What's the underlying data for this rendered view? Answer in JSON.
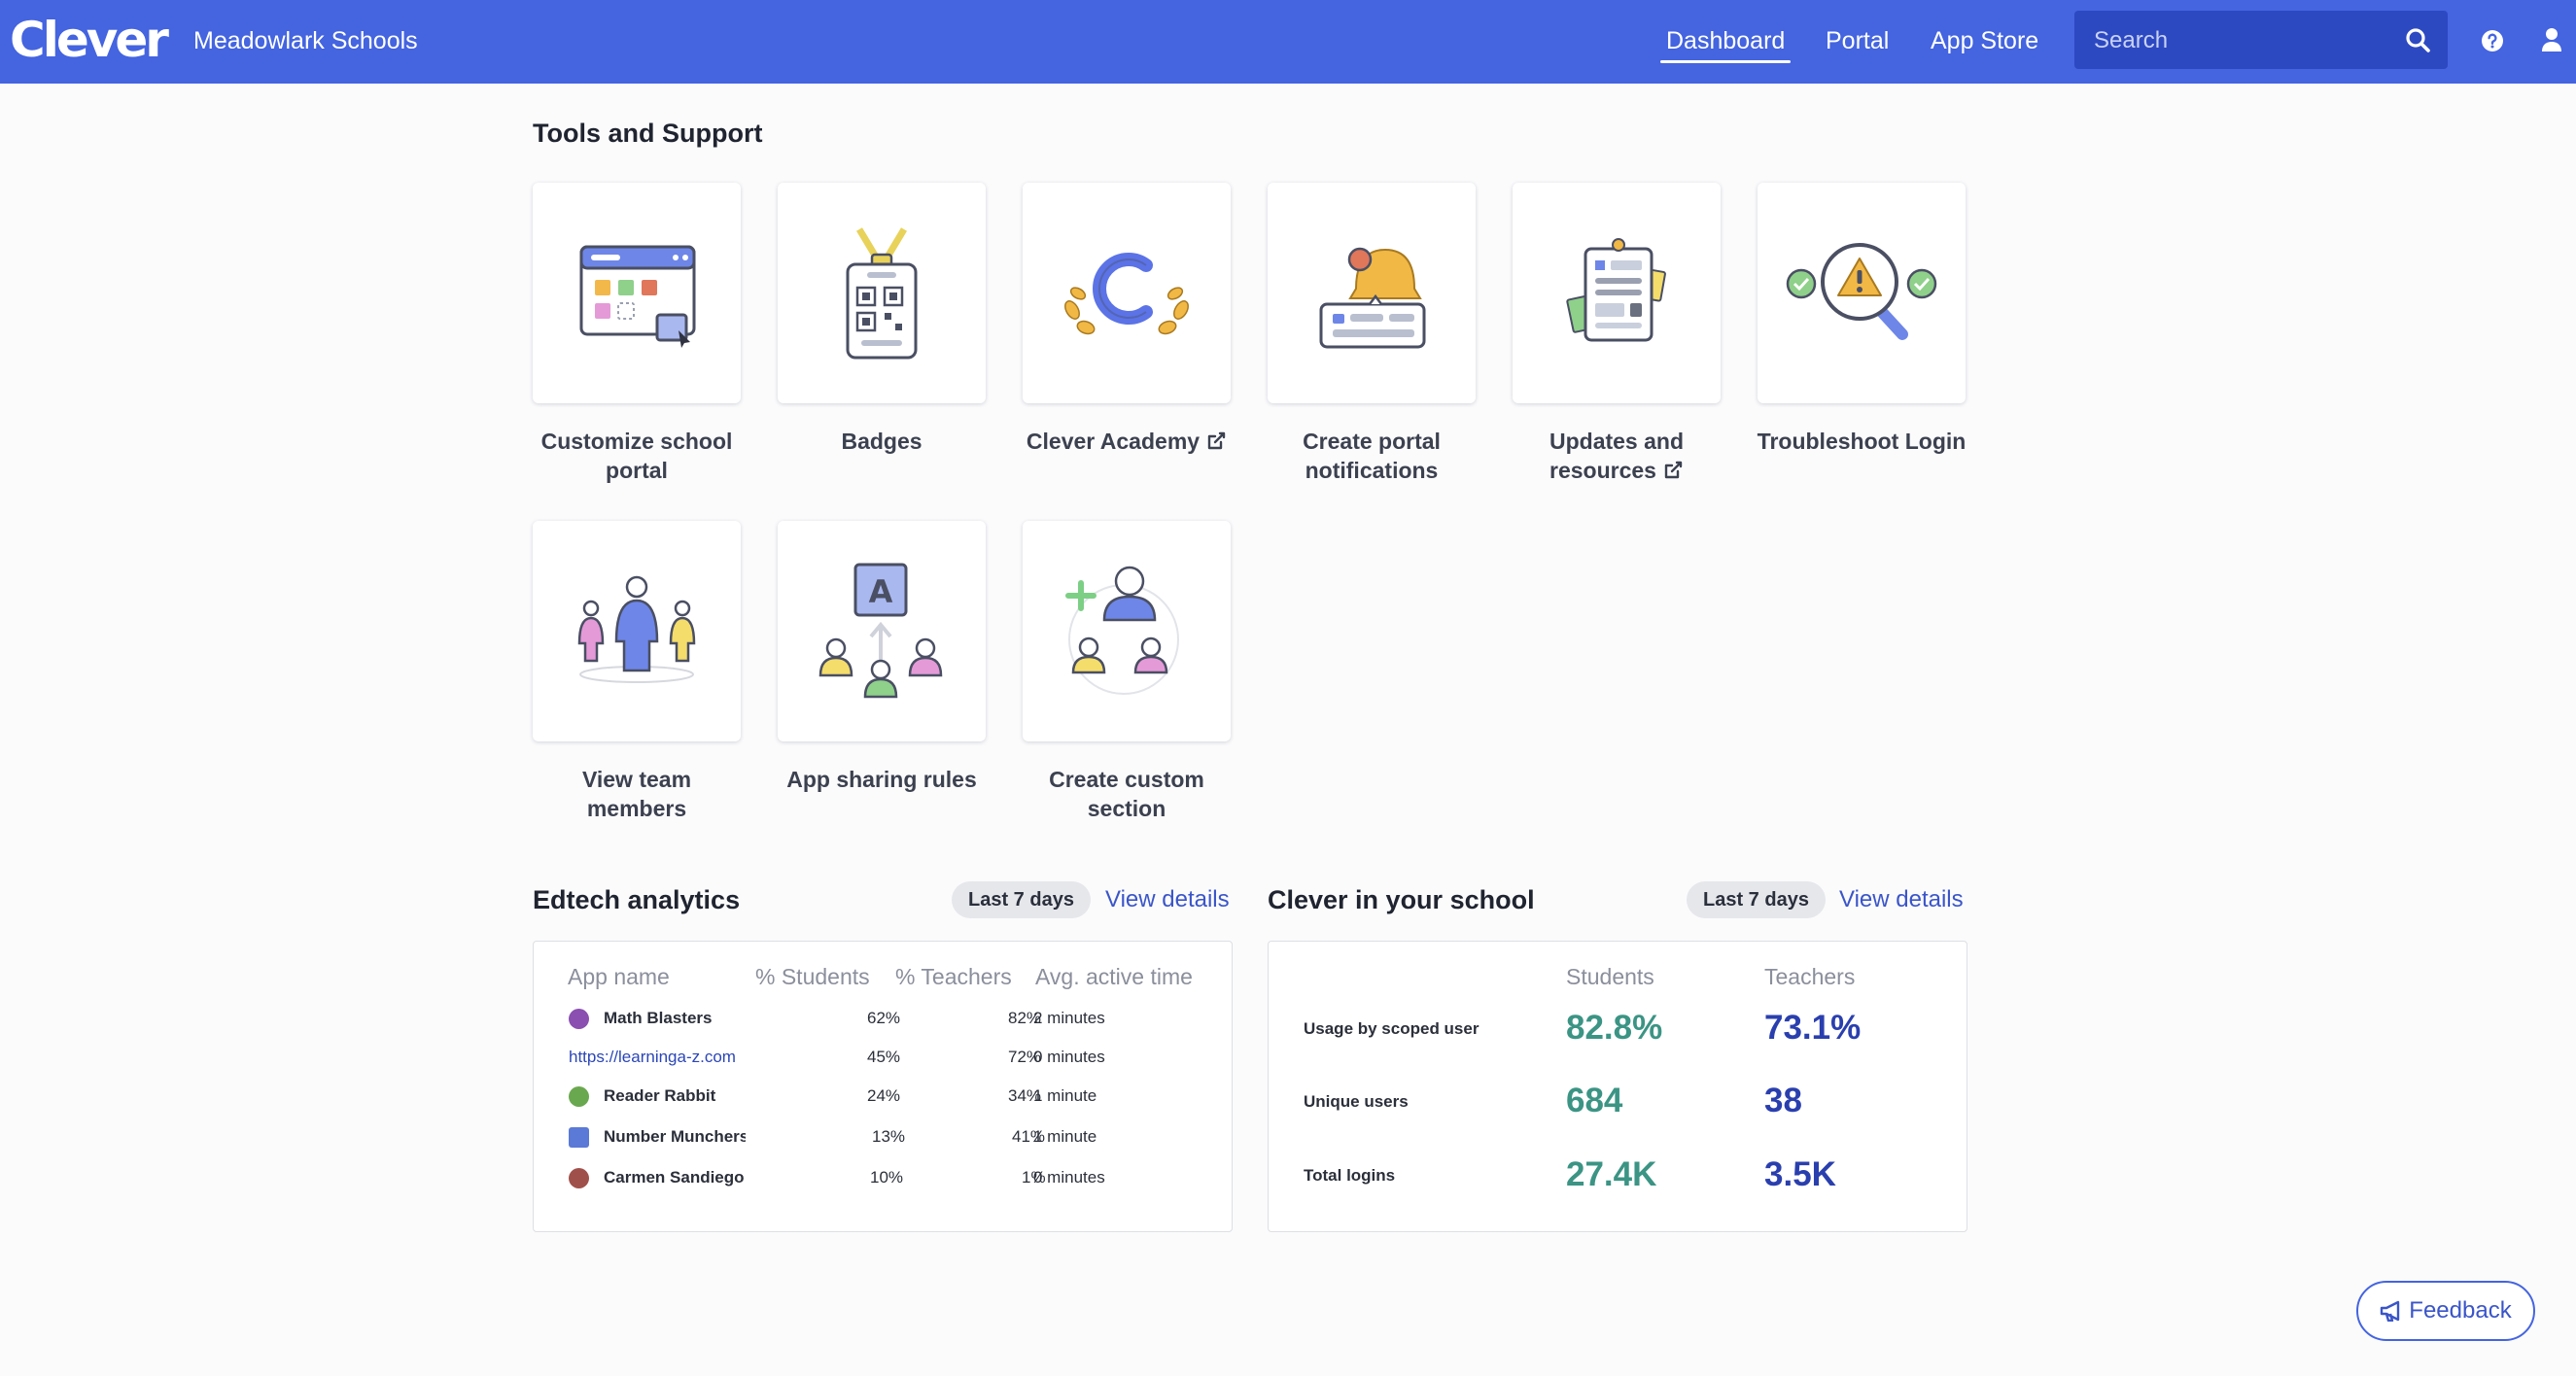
{
  "nav": {
    "logo": "Clever",
    "district": "Meadowlark Schools",
    "links": [
      {
        "label": "Dashboard",
        "active": true
      },
      {
        "label": "Portal",
        "active": false
      },
      {
        "label": "App Store",
        "active": false
      }
    ],
    "search_placeholder": "Search",
    "icons": [
      "search-icon",
      "help-icon",
      "user-icon"
    ],
    "brand_color": "#4464e0"
  },
  "tools": {
    "title": "Tools and Support",
    "tiles": [
      {
        "label": "Customize school portal",
        "icon": "portal-customize-icon"
      },
      {
        "label": "Badges",
        "icon": "badge-icon"
      },
      {
        "label": "Clever Academy",
        "icon": "clever-academy-icon",
        "external": true
      },
      {
        "label": "Create portal notifications",
        "icon": "notification-bell-icon"
      },
      {
        "label": "Updates and resources",
        "icon": "clipboard-icon",
        "external": true
      },
      {
        "label": "Troubleshoot Login",
        "icon": "troubleshoot-magnifier-icon"
      },
      {
        "label": "View team members",
        "icon": "team-members-icon"
      },
      {
        "label": "App sharing rules",
        "icon": "app-sharing-icon"
      },
      {
        "label": "Create custom section",
        "icon": "add-user-section-icon"
      }
    ]
  },
  "edtech": {
    "title": "Edtech analytics",
    "range": "Last 7 days",
    "details_link": "View details",
    "columns": [
      "App name",
      "% Students",
      "% Teachers",
      "Avg. active time"
    ],
    "rows": [
      {
        "name": "Math Blasters",
        "students": "62%",
        "teachers": "82%",
        "time": "2 minutes",
        "is_url": false,
        "icon_color": "#8a4fb0"
      },
      {
        "name": "https://learninga-z.com",
        "students": "45%",
        "teachers": "72%",
        "time": "0 minutes",
        "is_url": true,
        "icon_color": ""
      },
      {
        "name": "Reader Rabbit",
        "students": "24%",
        "teachers": "34%",
        "time": "1 minute",
        "is_url": false,
        "icon_color": "#6aa84f"
      },
      {
        "name": "Number Munchers",
        "students": "13%",
        "teachers": "41%",
        "time": "1 minute",
        "is_url": false,
        "icon_color": "#5b79d6"
      },
      {
        "name": "Carmen Sandiego",
        "students": "10%",
        "teachers": "1%",
        "time": "0 minutes",
        "is_url": false,
        "icon_color": "#a0504a"
      }
    ]
  },
  "clever_school": {
    "title": "Clever in your school",
    "range": "Last 7 days",
    "details_link": "View details",
    "columns": [
      "Students",
      "Teachers"
    ],
    "metrics": [
      {
        "label": "Usage by scoped user",
        "students": "82.8%",
        "teachers": "73.1%"
      },
      {
        "label": "Unique users",
        "students": "684",
        "teachers": "38"
      },
      {
        "label": "Total logins",
        "students": "27.4K",
        "teachers": "3.5K"
      }
    ],
    "student_color": "#3b9484",
    "teacher_color": "#2a3fae"
  },
  "feedback": {
    "label": "Feedback",
    "icon": "megaphone-icon"
  }
}
